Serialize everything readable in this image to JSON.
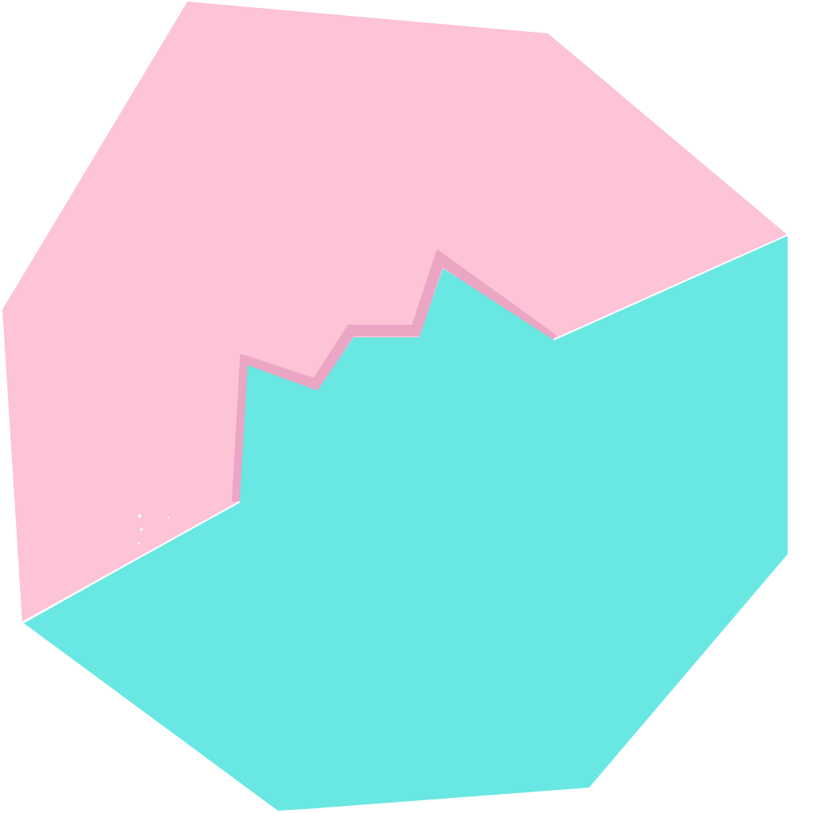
{
  "colors": {
    "background": "#ffffff",
    "pink_region": "#fdc3d6",
    "cyan_region": "#69e7e3",
    "seam_edge": "#eaa6c2",
    "divider_line": "#ffffff"
  },
  "regions": [
    {
      "name": "pink-region",
      "color_key": "pink_region"
    },
    {
      "name": "cyan-region",
      "color_key": "cyan_region"
    }
  ]
}
